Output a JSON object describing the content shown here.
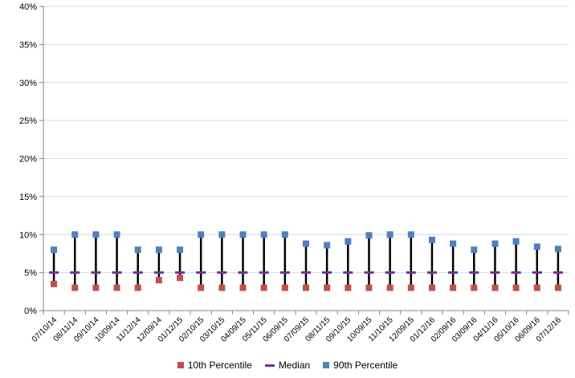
{
  "chart_data": {
    "type": "line",
    "title": "",
    "xlabel": "",
    "ylabel": "",
    "ylim": [
      0,
      40
    ],
    "y_ticks": [
      "0%",
      "5%",
      "10%",
      "15%",
      "20%",
      "25%",
      "30%",
      "35%",
      "40%"
    ],
    "y_tick_values": [
      0,
      5,
      10,
      15,
      20,
      25,
      30,
      35,
      40
    ],
    "grid": "horizontal",
    "legend_position": "bottom",
    "categories": [
      "07/10/14",
      "08/11/14",
      "09/10/14",
      "10/09/14",
      "11/12/14",
      "12/09/14",
      "01/12/15",
      "02/10/15",
      "03/10/15",
      "04/09/15",
      "05/11/15",
      "06/09/15",
      "07/09/15",
      "08/11/15",
      "09/10/15",
      "10/09/15",
      "11/10/15",
      "12/09/15",
      "01/12/16",
      "02/09/16",
      "03/09/16",
      "04/11/16",
      "05/10/16",
      "06/09/16",
      "07/12/16"
    ],
    "series": [
      {
        "name": "10th Percentile",
        "color": "#c0504d",
        "marker": "square",
        "values": [
          3.5,
          3,
          3,
          3,
          3,
          4,
          4.3,
          3,
          3,
          3,
          3,
          3,
          3,
          3,
          3,
          3,
          3,
          3,
          3,
          3,
          3,
          3,
          3,
          3,
          3
        ]
      },
      {
        "name": "Median",
        "color": "#7030a0",
        "marker": "dash",
        "values": [
          5,
          5,
          5,
          5,
          5,
          5,
          5,
          5,
          5,
          5,
          5,
          5,
          5,
          5,
          5,
          5,
          5,
          5,
          5,
          5,
          5,
          5,
          5,
          5,
          5
        ]
      },
      {
        "name": "90th Percentile",
        "color": "#4f81bd",
        "marker": "square",
        "values": [
          8,
          10,
          10,
          10,
          8,
          8,
          8,
          10,
          10,
          10,
          10,
          10,
          8.8,
          8.6,
          9.1,
          9.9,
          10,
          10,
          9.3,
          8.8,
          8,
          8.8,
          9.1,
          8.4,
          8.1
        ]
      }
    ]
  }
}
